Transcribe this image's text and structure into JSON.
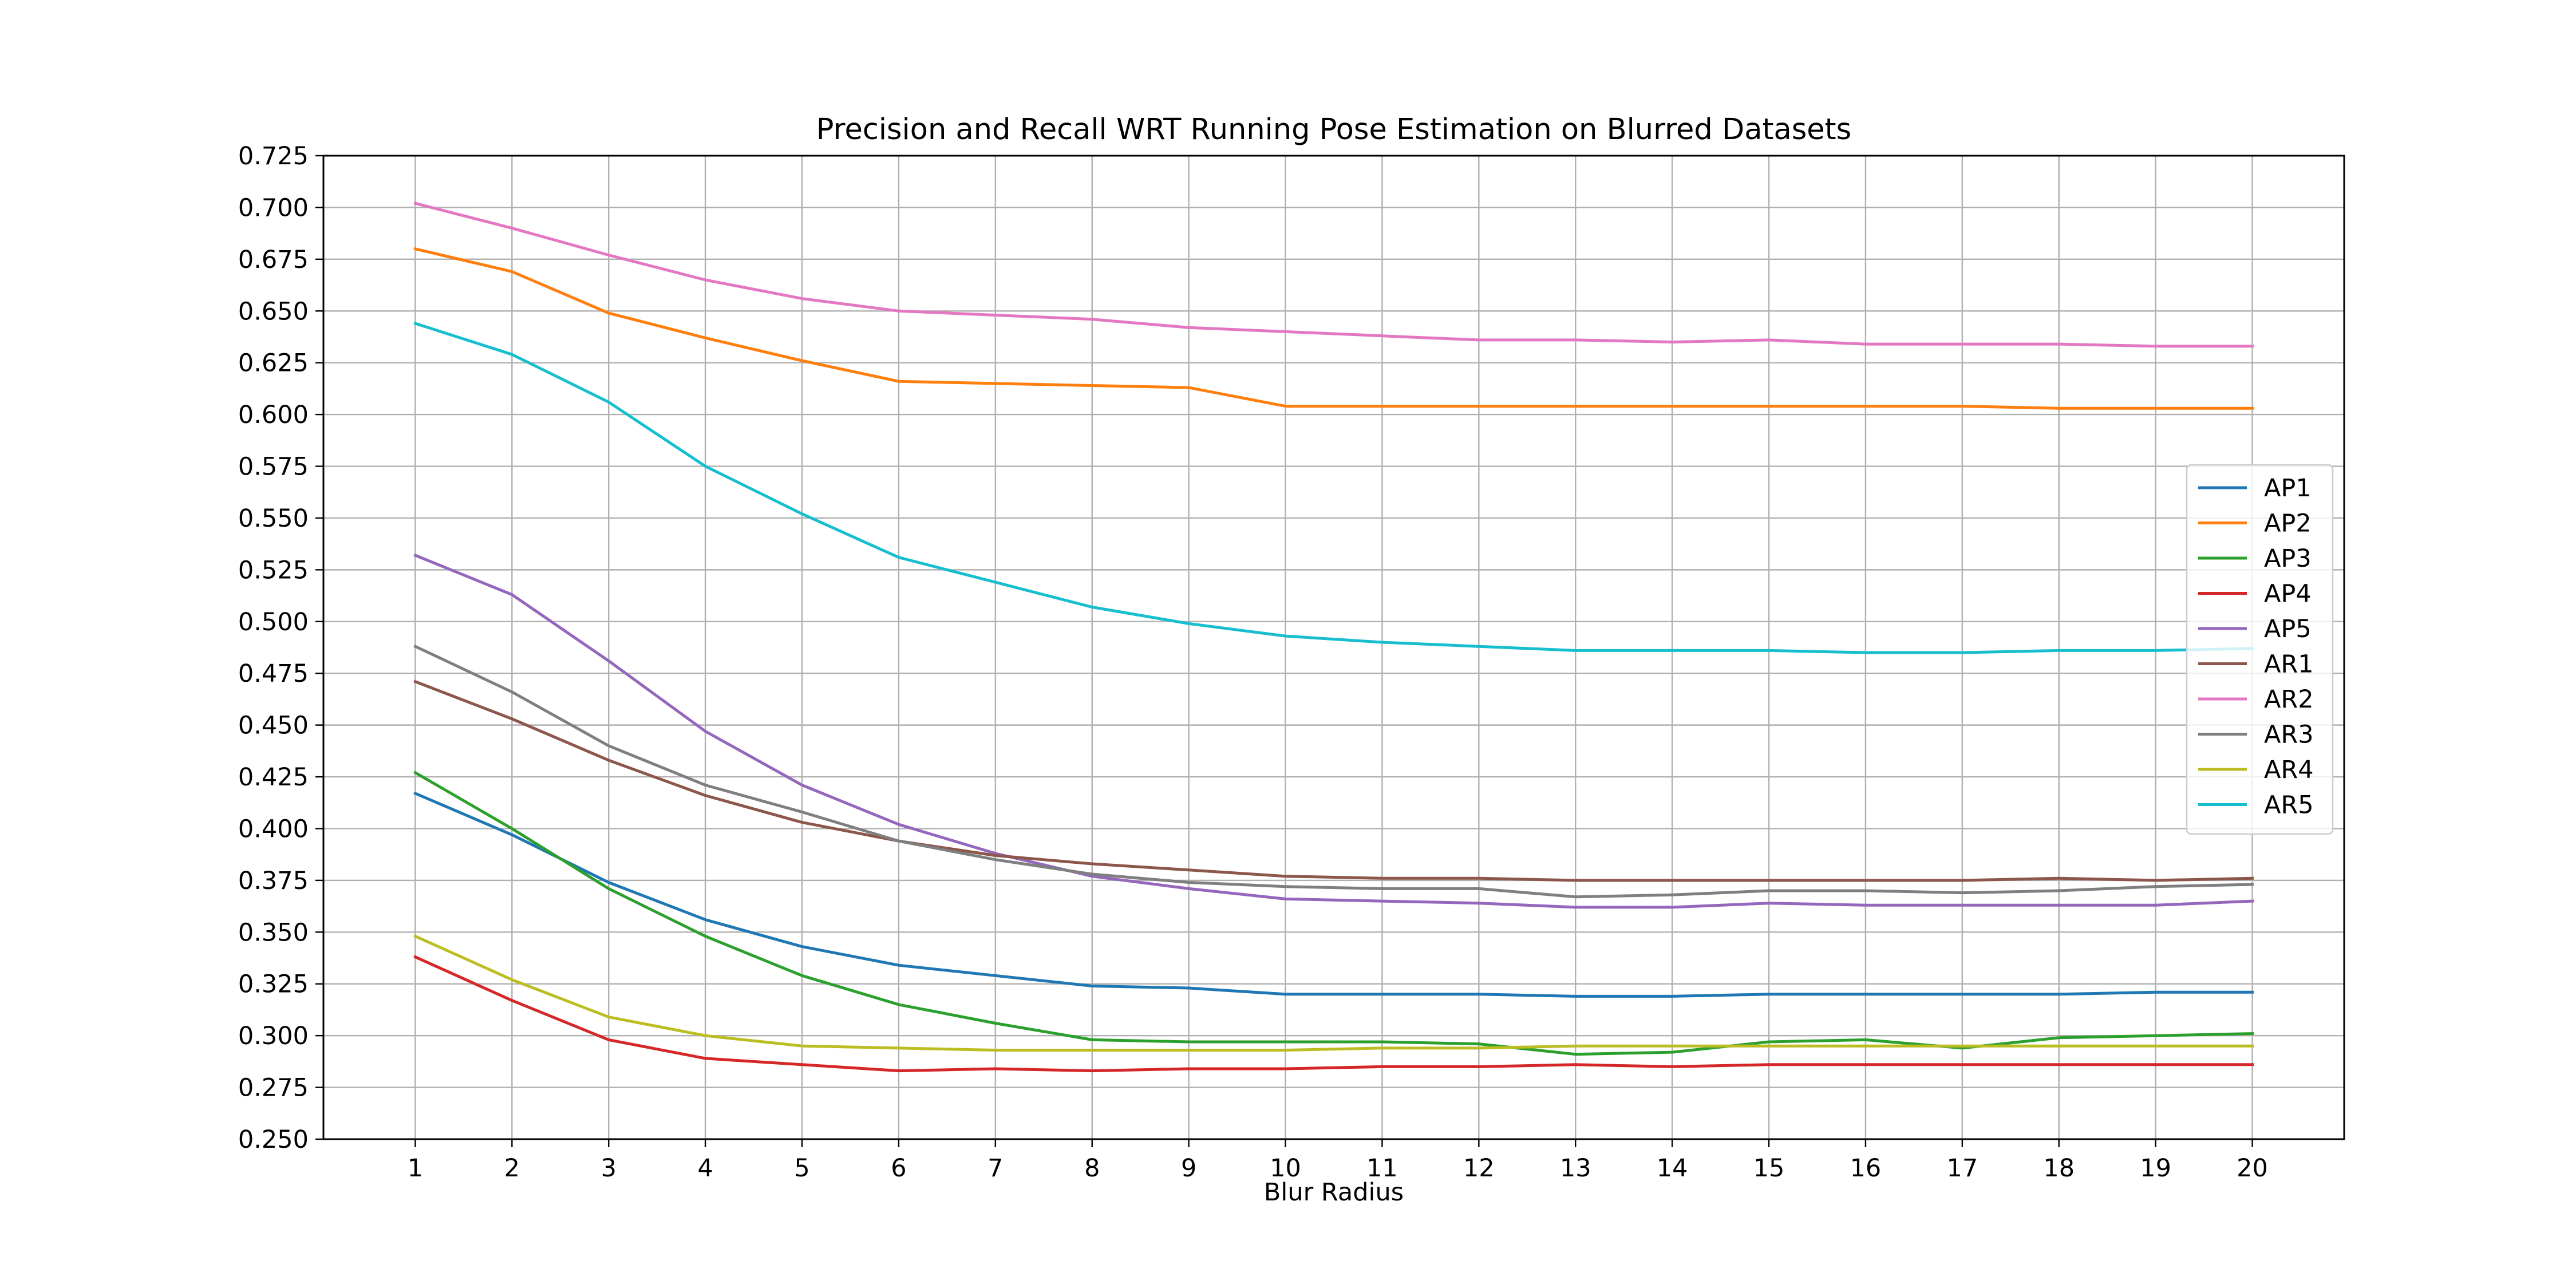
{
  "chart_data": {
    "type": "line",
    "title": "Precision and Recall WRT Running Pose Estimation on Blurred Datasets",
    "xlabel": "Blur Radius",
    "ylabel": "",
    "x": [
      1,
      2,
      3,
      4,
      5,
      6,
      7,
      8,
      9,
      10,
      11,
      12,
      13,
      14,
      15,
      16,
      17,
      18,
      19,
      20
    ],
    "xticks": [
      "1",
      "2",
      "3",
      "4",
      "5",
      "6",
      "7",
      "8",
      "9",
      "10",
      "11",
      "12",
      "13",
      "14",
      "15",
      "16",
      "17",
      "18",
      "19",
      "20"
    ],
    "xlim": [
      0.05,
      20.95
    ],
    "ylim": [
      0.25,
      0.725
    ],
    "yticks": [
      "0.250",
      "0.275",
      "0.300",
      "0.325",
      "0.350",
      "0.375",
      "0.400",
      "0.425",
      "0.450",
      "0.475",
      "0.500",
      "0.525",
      "0.550",
      "0.575",
      "0.600",
      "0.625",
      "0.650",
      "0.675",
      "0.700",
      "0.725"
    ],
    "grid": true,
    "legend_position": "right",
    "series": [
      {
        "name": "AP1",
        "color": "#1f77b4",
        "values": [
          0.417,
          0.397,
          0.374,
          0.356,
          0.343,
          0.334,
          0.329,
          0.324,
          0.323,
          0.32,
          0.32,
          0.32,
          0.319,
          0.319,
          0.32,
          0.32,
          0.32,
          0.32,
          0.321,
          0.321
        ]
      },
      {
        "name": "AP2",
        "color": "#ff7f0e",
        "values": [
          0.68,
          0.669,
          0.649,
          0.637,
          0.626,
          0.616,
          0.615,
          0.614,
          0.613,
          0.604,
          0.604,
          0.604,
          0.604,
          0.604,
          0.604,
          0.604,
          0.604,
          0.603,
          0.603,
          0.603
        ]
      },
      {
        "name": "AP3",
        "color": "#2ca02c",
        "values": [
          0.427,
          0.4,
          0.371,
          0.348,
          0.329,
          0.315,
          0.306,
          0.298,
          0.297,
          0.297,
          0.297,
          0.296,
          0.291,
          0.292,
          0.297,
          0.298,
          0.294,
          0.299,
          0.3,
          0.301
        ]
      },
      {
        "name": "AP4",
        "color": "#d62728",
        "values": [
          0.338,
          0.317,
          0.298,
          0.289,
          0.286,
          0.283,
          0.284,
          0.283,
          0.284,
          0.284,
          0.285,
          0.285,
          0.286,
          0.285,
          0.286,
          0.286,
          0.286,
          0.286,
          0.286,
          0.286
        ]
      },
      {
        "name": "AP5",
        "color": "#9467bd",
        "values": [
          0.532,
          0.513,
          0.481,
          0.447,
          0.421,
          0.402,
          0.388,
          0.377,
          0.371,
          0.366,
          0.365,
          0.364,
          0.362,
          0.362,
          0.364,
          0.363,
          0.363,
          0.363,
          0.363,
          0.365
        ]
      },
      {
        "name": "AR1",
        "color": "#8c564b",
        "values": [
          0.471,
          0.453,
          0.433,
          0.416,
          0.403,
          0.394,
          0.387,
          0.383,
          0.38,
          0.377,
          0.376,
          0.376,
          0.375,
          0.375,
          0.375,
          0.375,
          0.375,
          0.376,
          0.375,
          0.376
        ]
      },
      {
        "name": "AR2",
        "color": "#e377c2",
        "values": [
          0.702,
          0.69,
          0.677,
          0.665,
          0.656,
          0.65,
          0.648,
          0.646,
          0.642,
          0.64,
          0.638,
          0.636,
          0.636,
          0.635,
          0.636,
          0.634,
          0.634,
          0.634,
          0.633,
          0.633
        ]
      },
      {
        "name": "AR3",
        "color": "#7f7f7f",
        "values": [
          0.488,
          0.466,
          0.44,
          0.421,
          0.408,
          0.394,
          0.385,
          0.378,
          0.374,
          0.372,
          0.371,
          0.371,
          0.367,
          0.368,
          0.37,
          0.37,
          0.369,
          0.37,
          0.372,
          0.373
        ]
      },
      {
        "name": "AR4",
        "color": "#bcbd22",
        "values": [
          0.348,
          0.327,
          0.309,
          0.3,
          0.295,
          0.294,
          0.293,
          0.293,
          0.293,
          0.293,
          0.294,
          0.294,
          0.295,
          0.295,
          0.295,
          0.295,
          0.295,
          0.295,
          0.295,
          0.295
        ]
      },
      {
        "name": "AR5",
        "color": "#17becf",
        "values": [
          0.644,
          0.629,
          0.606,
          0.575,
          0.552,
          0.531,
          0.519,
          0.507,
          0.499,
          0.493,
          0.49,
          0.488,
          0.486,
          0.486,
          0.486,
          0.485,
          0.485,
          0.486,
          0.486,
          0.487
        ]
      }
    ]
  }
}
